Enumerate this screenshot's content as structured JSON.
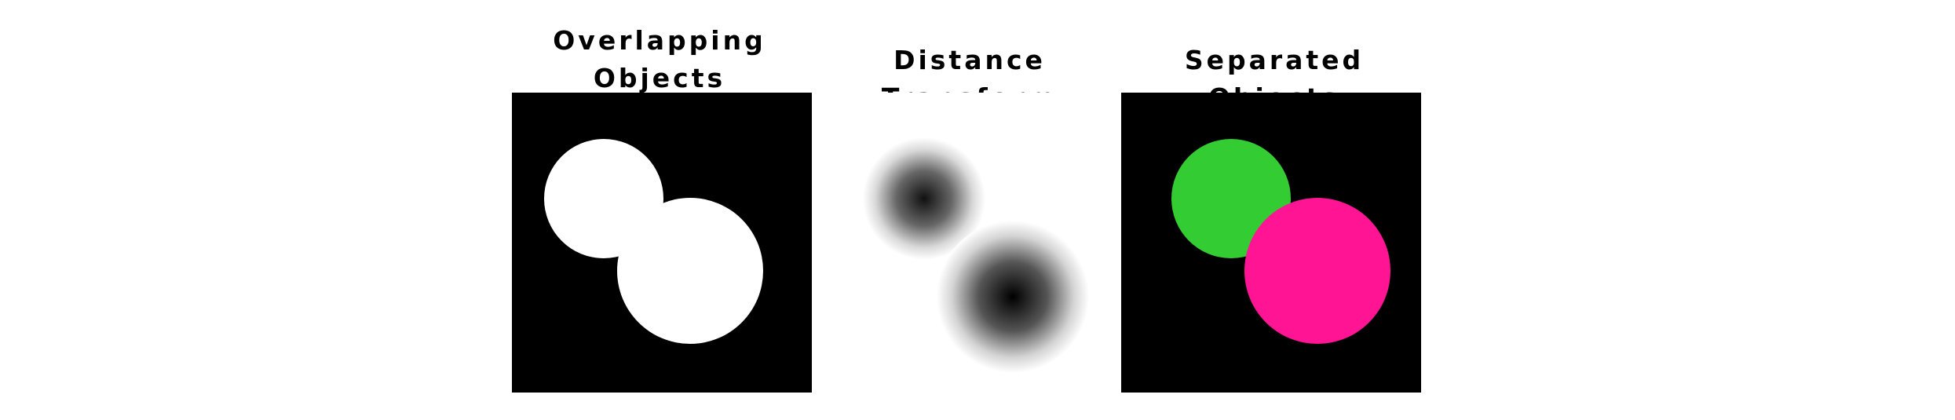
{
  "panels": [
    {
      "title": "Overlapping\nObjects",
      "background": "#000000",
      "foreground": "#ffffff"
    },
    {
      "title": "Distance Transform",
      "background": "#ffffff",
      "foreground": "#000000"
    },
    {
      "title": "Separated Objects",
      "background": "#000000",
      "object_colors": [
        "#33cc33",
        "#ff1493"
      ]
    }
  ]
}
